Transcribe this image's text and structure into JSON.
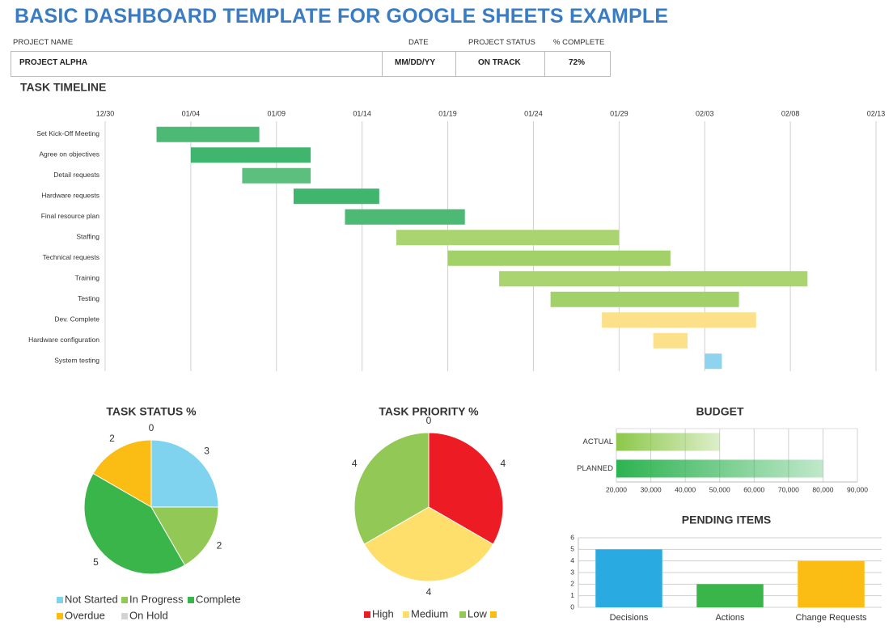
{
  "header": {
    "title": "BASIC DASHBOARD TEMPLATE FOR GOOGLE SHEETS EXAMPLE"
  },
  "project_table": {
    "columns": [
      "PROJECT NAME",
      "DATE",
      "PROJECT STATUS",
      "% COMPLETE"
    ],
    "row": [
      "PROJECT ALPHA",
      "MM/DD/YY",
      "ON TRACK",
      "72%"
    ]
  },
  "chart_data": [
    {
      "type": "gantt",
      "title": "TASK TIMELINE",
      "categories": [
        "Set Kick-Off Meeting",
        "Agree on objectives",
        "Detail requests",
        "Hardware requests",
        "Final resource plan",
        "Staffing",
        "Technical requests",
        "Training",
        "Testing",
        "Dev. Complete",
        "Hardware configuration",
        "System testing"
      ],
      "start": [
        3,
        5,
        8,
        11,
        14,
        17,
        20,
        23,
        26,
        29,
        32,
        35
      ],
      "end": [
        9,
        12,
        12,
        16,
        21,
        30,
        33,
        41,
        37,
        38,
        34,
        36
      ],
      "colors": [
        "#4cba74",
        "#3fb56d",
        "#5cbf7d",
        "#3fb56d",
        "#4cba74",
        "#a9d46f",
        "#a3d169",
        "#a9d46f",
        "#a3d169",
        "#fde08a",
        "#fde08a",
        "#8fd4ef"
      ],
      "xlim": [
        0,
        45
      ],
      "xticks": [
        {
          "value": 0,
          "label": "12/30"
        },
        {
          "value": 5,
          "label": "01/04"
        },
        {
          "value": 10,
          "label": "01/09"
        },
        {
          "value": 15,
          "label": "01/14"
        },
        {
          "value": 20,
          "label": "01/19"
        },
        {
          "value": 25,
          "label": "01/24"
        },
        {
          "value": 30,
          "label": "01/29"
        },
        {
          "value": 35,
          "label": "02/03"
        },
        {
          "value": 40,
          "label": "02/08"
        },
        {
          "value": 45,
          "label": "02/13"
        }
      ],
      "grid": true
    },
    {
      "type": "pie",
      "title": "TASK STATUS %",
      "categories": [
        "Not Started",
        "In Progress",
        "Complete",
        "Overdue",
        "On Hold"
      ],
      "values": [
        3,
        2,
        5,
        2,
        0
      ],
      "colors": [
        "#7fd3ee",
        "#92c956",
        "#3ab54a",
        "#fbbd13",
        "#d3d3d3"
      ]
    },
    {
      "type": "pie",
      "title": "TASK PRIORITY %",
      "categories": [
        "High",
        "Medium",
        "Low",
        null
      ],
      "values": [
        4,
        4,
        4,
        0
      ],
      "colors": [
        "#ed1c24",
        "#fedf6b",
        "#92c956",
        "#fbbd13"
      ]
    },
    {
      "type": "hbar",
      "title": "BUDGET",
      "categories": [
        "ACTUAL",
        "PLANNED"
      ],
      "values": [
        50000,
        80000
      ],
      "colors": [
        "#8cc84b",
        "#2db350"
      ],
      "xlim": [
        20000,
        90000
      ],
      "xticks": [
        {
          "value": 20000,
          "label": "20,000"
        },
        {
          "value": 30000,
          "label": "30,000"
        },
        {
          "value": 40000,
          "label": "40,000"
        },
        {
          "value": 50000,
          "label": "50,000"
        },
        {
          "value": 60000,
          "label": "60,000"
        },
        {
          "value": 70000,
          "label": "70,000"
        },
        {
          "value": 80000,
          "label": "80,000"
        },
        {
          "value": 90000,
          "label": "90,000"
        }
      ],
      "grid": true
    },
    {
      "type": "bar",
      "title": "PENDING ITEMS",
      "categories": [
        "Decisions",
        "Actions",
        "Change Requests"
      ],
      "values": [
        5,
        2,
        4
      ],
      "colors": [
        "#29abe2",
        "#39b54a",
        "#fbbd13"
      ],
      "ylim": [
        0,
        6
      ],
      "yticks": [
        0,
        1,
        2,
        3,
        4,
        5,
        6
      ],
      "grid": true
    }
  ]
}
